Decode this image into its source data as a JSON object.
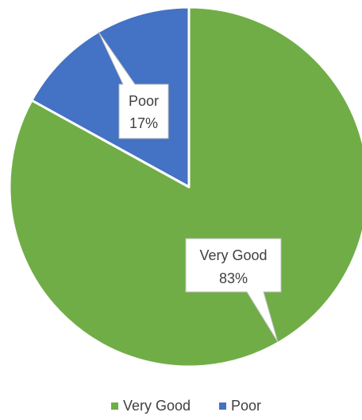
{
  "chart_data": {
    "type": "pie",
    "title": "",
    "slices": [
      {
        "name": "Very Good",
        "value": 83,
        "color": "#70ad47",
        "label_line1": "Very Good",
        "label_line2": "83%"
      },
      {
        "name": "Poor",
        "value": 17,
        "color": "#4472c4",
        "label_line1": "Poor",
        "label_line2": "17%"
      }
    ],
    "legend": {
      "position": "bottom",
      "entries": [
        {
          "label": "Very Good",
          "color": "#70ad47"
        },
        {
          "label": "Poor",
          "color": "#4472c4"
        }
      ]
    }
  }
}
